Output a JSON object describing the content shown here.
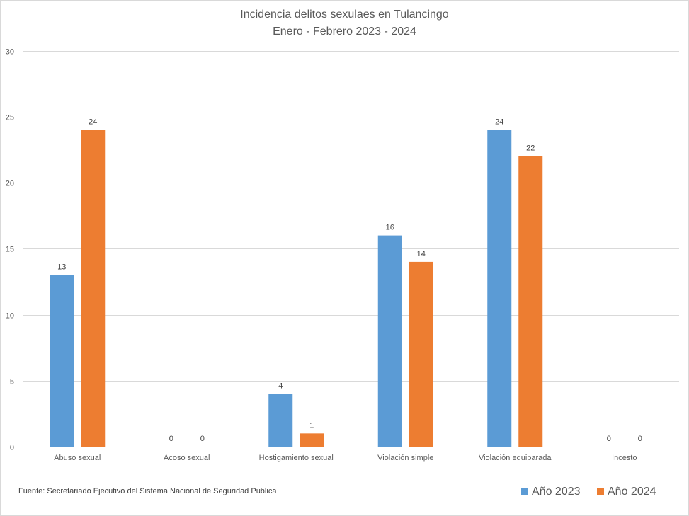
{
  "chart_data": {
    "type": "bar",
    "title": "Incidencia delitos sexulaes en Tulancingo",
    "subtitle": "Enero - Febrero 2023 - 2024",
    "categories": [
      "Abuso sexual",
      "Acoso sexual",
      "Hostigamiento sexual",
      "Violación simple",
      "Violación equiparada",
      "Incesto"
    ],
    "series": [
      {
        "name": "Año 2023",
        "color": "#5b9bd5",
        "values": [
          13,
          0,
          4,
          16,
          24,
          0
        ]
      },
      {
        "name": "Año 2024",
        "color": "#ed7d31",
        "values": [
          24,
          0,
          1,
          14,
          22,
          0
        ]
      }
    ],
    "ylim": [
      0,
      30
    ],
    "yticks": [
      0,
      5,
      10,
      15,
      20,
      25,
      30
    ],
    "grid": true,
    "legend_position": "bottom-right",
    "source": "Fuente:  Secretariado Ejecutivo del Sistema Nacional de Seguridad Pública"
  }
}
